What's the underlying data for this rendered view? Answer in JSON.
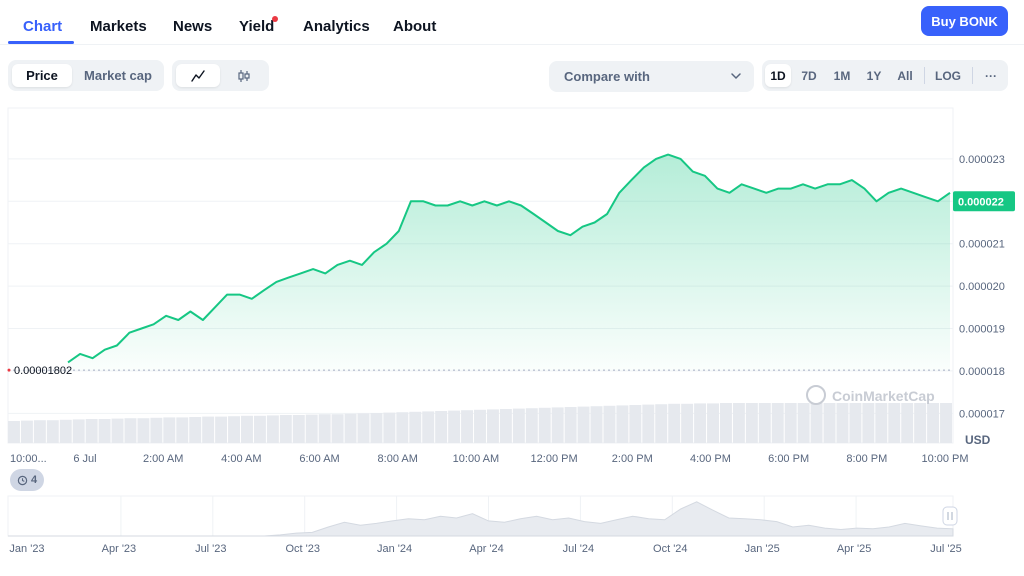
{
  "nav": {
    "tabs": [
      "Chart",
      "Markets",
      "News",
      "Yield",
      "Analytics",
      "About"
    ],
    "active_tab": "Chart",
    "buy_label": "Buy BONK",
    "accent_color": "#3861fb",
    "notification_color": "#ea3943"
  },
  "toolbar": {
    "price_label": "Price",
    "marketcap_label": "Market cap",
    "line_icon": "line-chart-icon",
    "candle_icon": "candlestick-icon",
    "compare_label": "Compare with",
    "ranges": [
      "1D",
      "7D",
      "1M",
      "1Y",
      "All"
    ],
    "active_range": "1D",
    "log_label": "LOG",
    "more_label": "···"
  },
  "chart_data": {
    "type": "area",
    "currency": "USD",
    "line_color": "#16c784",
    "y_ticks": [
      "0.000017",
      "0.000018",
      "0.000019",
      "0.000020",
      "0.000021",
      "0.000022",
      "0.000023"
    ],
    "ylim": [
      1.63e-05,
      2.42e-05
    ],
    "x_ticks": [
      "10:00...",
      "6 Jul",
      "2:00 AM",
      "4:00 AM",
      "6:00 AM",
      "8:00 AM",
      "10:00 AM",
      "12:00 PM",
      "2:00 PM",
      "4:00 PM",
      "6:00 PM",
      "8:00 PM",
      "10:00 PM"
    ],
    "open_price_label": "0.00001802",
    "open_price": 1.802e-05,
    "current_price_label": "0.000022",
    "current_price": 2.2e-05,
    "series": [
      {
        "hours_from_start": [
          0,
          0.33,
          0.67,
          1.0,
          1.33,
          1.67,
          2.0,
          2.33,
          2.67,
          3.0,
          3.33,
          3.67,
          4.0,
          4.33,
          4.67,
          5.0,
          5.33,
          5.67,
          6.0,
          6.33,
          6.67,
          7.0,
          7.33,
          7.67,
          8.0,
          8.33,
          8.67,
          9.0,
          9.33,
          9.67,
          10.0,
          10.33,
          10.67,
          11.0,
          11.33,
          11.67,
          12.0,
          12.33,
          12.67,
          13.0,
          13.33,
          13.67,
          14.0,
          14.33,
          14.67,
          15.0,
          15.33,
          15.67,
          16.0,
          16.33,
          16.67,
          17.0,
          17.33,
          17.67,
          18.0,
          18.33,
          18.67,
          19.0,
          19.33,
          19.67,
          20.0,
          20.33,
          20.67,
          21.0,
          21.33,
          21.67,
          22.0,
          22.33,
          22.67,
          23.0,
          23.33,
          23.67,
          24.0
        ],
        "prices": [
          1.82e-05,
          1.84e-05,
          1.83e-05,
          1.85e-05,
          1.86e-05,
          1.89e-05,
          1.9e-05,
          1.91e-05,
          1.93e-05,
          1.92e-05,
          1.94e-05,
          1.92e-05,
          1.95e-05,
          1.98e-05,
          1.98e-05,
          1.97e-05,
          1.99e-05,
          2.01e-05,
          2.02e-05,
          2.03e-05,
          2.04e-05,
          2.03e-05,
          2.05e-05,
          2.06e-05,
          2.05e-05,
          2.08e-05,
          2.1e-05,
          2.13e-05,
          2.2e-05,
          2.2e-05,
          2.19e-05,
          2.19e-05,
          2.2e-05,
          2.19e-05,
          2.2e-05,
          2.19e-05,
          2.2e-05,
          2.19e-05,
          2.17e-05,
          2.15e-05,
          2.13e-05,
          2.12e-05,
          2.14e-05,
          2.15e-05,
          2.17e-05,
          2.22e-05,
          2.25e-05,
          2.28e-05,
          2.3e-05,
          2.31e-05,
          2.3e-05,
          2.27e-05,
          2.26e-05,
          2.23e-05,
          2.22e-05,
          2.24e-05,
          2.23e-05,
          2.22e-05,
          2.23e-05,
          2.23e-05,
          2.24e-05,
          2.23e-05,
          2.24e-05,
          2.24e-05,
          2.25e-05,
          2.23e-05,
          2.2e-05,
          2.22e-05,
          2.23e-05,
          2.22e-05,
          2.21e-05,
          2.2e-05,
          2.22e-05
        ]
      }
    ],
    "volume_relative": [
      0.55,
      0.56,
      0.57,
      0.57,
      0.58,
      0.59,
      0.6,
      0.6,
      0.61,
      0.62,
      0.62,
      0.63,
      0.64,
      0.64,
      0.65,
      0.66,
      0.66,
      0.67,
      0.68,
      0.68,
      0.69,
      0.7,
      0.7,
      0.71,
      0.72,
      0.72,
      0.73,
      0.74,
      0.75,
      0.76,
      0.77,
      0.78,
      0.79,
      0.8,
      0.81,
      0.82,
      0.83,
      0.84,
      0.85,
      0.86,
      0.87,
      0.88,
      0.89,
      0.9,
      0.91,
      0.92,
      0.93,
      0.94,
      0.95,
      0.96,
      0.97,
      0.98,
      0.98,
      0.99,
      0.99,
      1.0,
      1.0,
      1.0,
      1.0,
      1.0,
      1.0,
      1.0,
      1.0,
      1.0,
      1.0,
      1.0,
      1.0,
      1.0,
      1.0,
      1.0,
      1.0,
      1.0,
      1.0
    ],
    "watermark": "CoinMarketCap"
  },
  "navigator": {
    "x_ticks": [
      "Jan '23",
      "Apr '23",
      "Jul '23",
      "Oct '23",
      "Jan '24",
      "Apr '24",
      "Jul '24",
      "Oct '24",
      "Jan '25",
      "Apr '25",
      "Jul '25"
    ],
    "relative_values": [
      0,
      0,
      0,
      0,
      0,
      0,
      0,
      0,
      0,
      0,
      0,
      0,
      0,
      0,
      0,
      0,
      0,
      0.03,
      0.08,
      0.1,
      0.25,
      0.38,
      0.3,
      0.35,
      0.42,
      0.48,
      0.45,
      0.55,
      0.5,
      0.62,
      0.42,
      0.38,
      0.48,
      0.55,
      0.45,
      0.5,
      0.4,
      0.35,
      0.45,
      0.55,
      0.48,
      0.45,
      0.75,
      0.95,
      0.72,
      0.5,
      0.48,
      0.45,
      0.4,
      0.25,
      0.3,
      0.22,
      0.18,
      0.22,
      0.2,
      0.25,
      0.35,
      0.28,
      0.22,
      0.2
    ]
  },
  "history": {
    "count_label": "4",
    "icon": "history-icon"
  }
}
